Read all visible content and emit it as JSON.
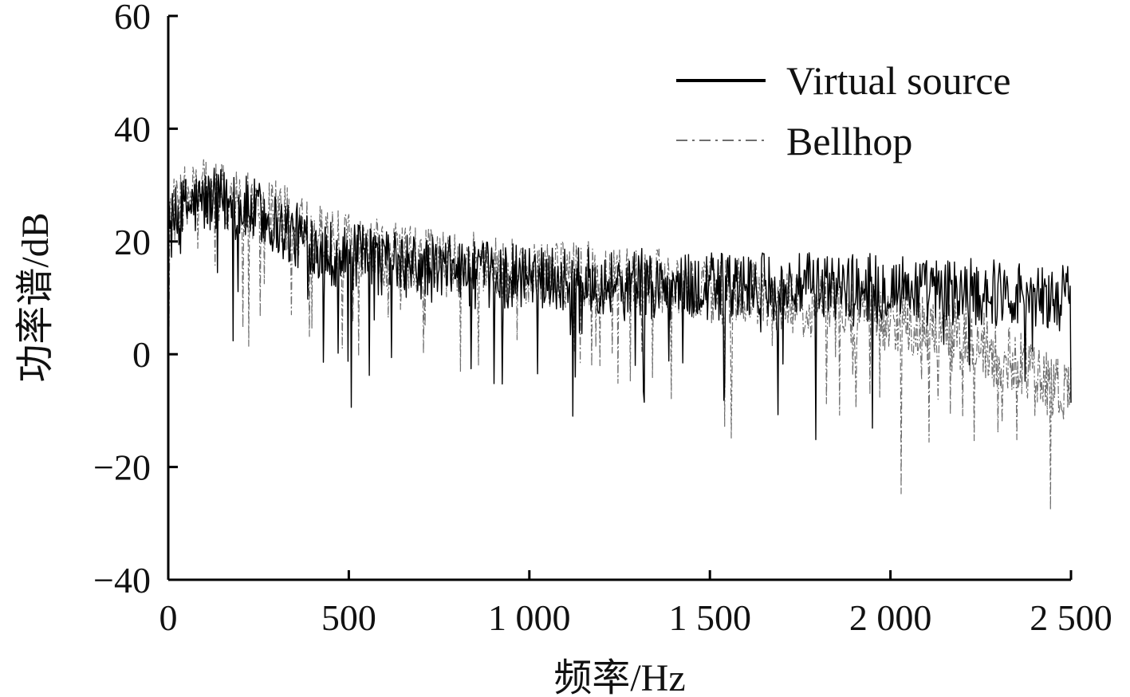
{
  "chart_data": {
    "type": "line",
    "title": "",
    "xlabel": "频率/Hz",
    "ylabel": "功率谱/dB",
    "xlim": [
      0,
      2500
    ],
    "ylim": [
      -40,
      60
    ],
    "x_ticks": [
      0,
      500,
      1000,
      1500,
      2000,
      2500
    ],
    "x_tick_labels": [
      "0",
      "500",
      "1 000",
      "1 500",
      "2 000",
      "2 500"
    ],
    "y_ticks": [
      -40,
      -20,
      0,
      20,
      40,
      60
    ],
    "y_tick_labels": [
      "−40",
      "−20",
      "0",
      "20",
      "40",
      "60"
    ],
    "grid": false,
    "legend_position": "top-right",
    "series": [
      {
        "name": "Virtual source",
        "color": "#000000",
        "style": "solid",
        "x": [
          0,
          50,
          100,
          150,
          200,
          250,
          300,
          350,
          400,
          450,
          500,
          550,
          600,
          650,
          700,
          750,
          800,
          850,
          900,
          950,
          1000,
          1050,
          1100,
          1150,
          1200,
          1250,
          1300,
          1350,
          1400,
          1450,
          1500,
          1550,
          1600,
          1650,
          1700,
          1750,
          1800,
          1850,
          1900,
          1950,
          2000,
          2050,
          2100,
          2150,
          2200,
          2250,
          2300,
          2350,
          2400,
          2450,
          2500
        ],
        "y": [
          22,
          26,
          27,
          27,
          26,
          25,
          23,
          21,
          20,
          18,
          17,
          17,
          16,
          16,
          15,
          15,
          15,
          14,
          14,
          14,
          14,
          14,
          13,
          13,
          13,
          13,
          13,
          12,
          12,
          12,
          12,
          12,
          12,
          12,
          12,
          12,
          12,
          12,
          12,
          12,
          12,
          12,
          11,
          11,
          11,
          11,
          11,
          11,
          10,
          10,
          10
        ],
        "noise_amplitude": 12
      },
      {
        "name": "Bellhop",
        "color": "#6e6e6e",
        "style": "dash-dot",
        "x": [
          0,
          50,
          100,
          150,
          200,
          250,
          300,
          350,
          400,
          450,
          500,
          550,
          600,
          650,
          700,
          750,
          800,
          850,
          900,
          950,
          1000,
          1050,
          1100,
          1150,
          1200,
          1250,
          1300,
          1350,
          1400,
          1450,
          1500,
          1550,
          1600,
          1650,
          1700,
          1750,
          1800,
          1850,
          1900,
          1950,
          2000,
          2050,
          2100,
          2150,
          2200,
          2250,
          2300,
          2350,
          2400,
          2450,
          2500
        ],
        "y": [
          24,
          28,
          29,
          28,
          27,
          26,
          25,
          23,
          21,
          20,
          19,
          18,
          18,
          17,
          17,
          16,
          16,
          16,
          15,
          15,
          15,
          14,
          14,
          14,
          14,
          13,
          13,
          13,
          12,
          12,
          11,
          11,
          11,
          10,
          10,
          9,
          9,
          8,
          8,
          7,
          6,
          6,
          5,
          4,
          3,
          2,
          0,
          -1,
          -3,
          -5,
          -7
        ],
        "noise_amplitude": 12
      }
    ]
  }
}
